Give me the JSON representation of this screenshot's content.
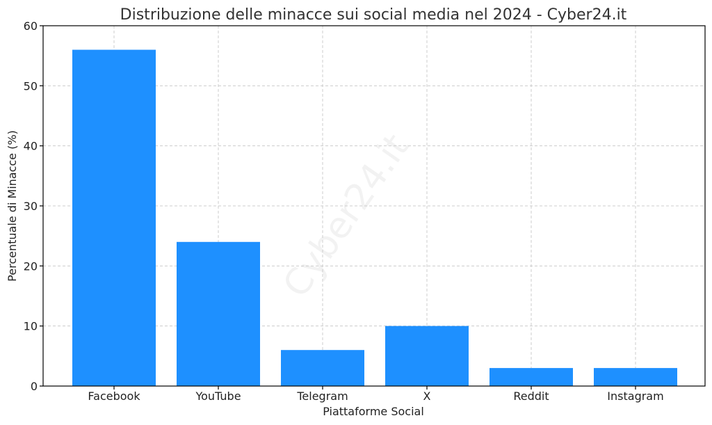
{
  "chart_data": {
    "type": "bar",
    "title": "Distribuzione delle minacce sui social media nel 2024 - Cyber24.it",
    "xlabel": "Piattaforme Social",
    "ylabel": "Percentuale di Minacce (%)",
    "categories": [
      "Facebook",
      "YouTube",
      "Telegram",
      "X",
      "Reddit",
      "Instagram"
    ],
    "values": [
      56,
      24,
      6,
      10,
      3,
      3
    ],
    "ylim": [
      0,
      60
    ],
    "yticks": [
      0,
      10,
      20,
      30,
      40,
      50,
      60
    ],
    "grid": true,
    "bar_color": "#1e90ff",
    "watermark": "Cyber24.it"
  }
}
